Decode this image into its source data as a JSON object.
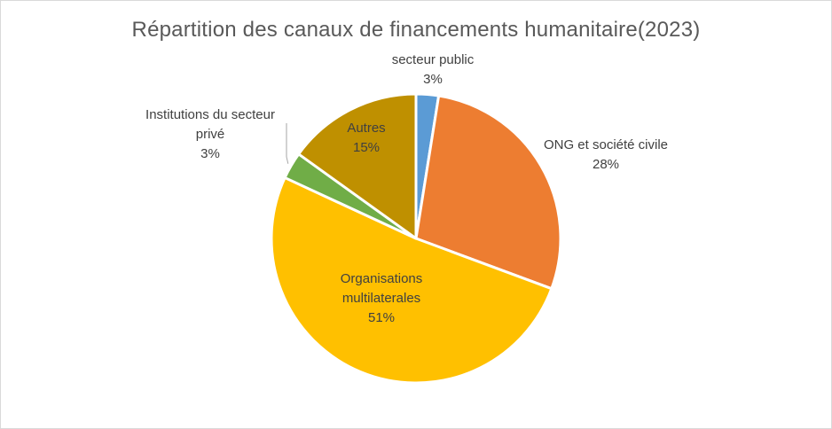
{
  "chart_data": {
    "type": "pie",
    "title": "Répartition des canaux de financements humanitaire(2023)",
    "start_angle_deg": 0,
    "direction": "clockwise",
    "slices": [
      {
        "name": "secteur public",
        "label_lines": [
          "secteur public"
        ],
        "value": 2.5,
        "display": "3%",
        "color": "#5b9bd5",
        "label_position": "outside"
      },
      {
        "name": "ONG et société civile",
        "label_lines": [
          "ONG et société civile"
        ],
        "value": 28,
        "display": "28%",
        "color": "#ed7d31",
        "label_position": "outside"
      },
      {
        "name": "Organisations multilaterales",
        "label_lines": [
          "Organisations",
          "multilaterales"
        ],
        "value": 51,
        "display": "51%",
        "color": "#ffc000",
        "label_position": "inside"
      },
      {
        "name": "Institutions du secteur privé",
        "label_lines": [
          "Institutions du secteur",
          "privé"
        ],
        "value": 3,
        "display": "3%",
        "color": "#70ad47",
        "label_position": "outside",
        "leader_line": true
      },
      {
        "name": "Autres",
        "label_lines": [
          "Autres"
        ],
        "value": 15,
        "display": "15%",
        "color": "#bf9000",
        "label_position": "inside"
      }
    ]
  }
}
